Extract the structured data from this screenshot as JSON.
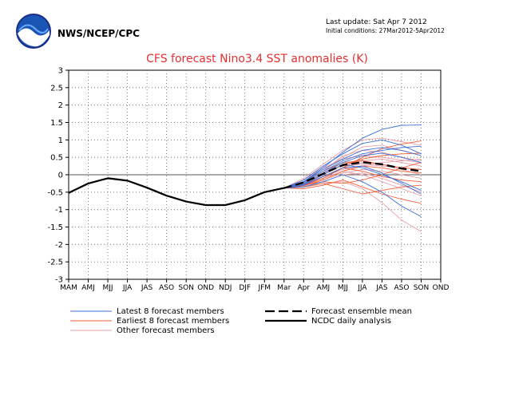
{
  "header": {
    "agency": "NWS/NCEP/CPC",
    "logo_text": "NOAA",
    "last_update": "Last update: Sat Apr 7 2012",
    "initial_conditions": "Initial conditions: 27Mar2012-5Apr2012"
  },
  "colors": {
    "latest": "#3b6fd8",
    "earliest": "#f0603a",
    "other": "#e8a0a8",
    "analysis": "#000000",
    "mean": "#000000",
    "title": "#e53030",
    "grid": "#555555"
  },
  "chart_data": {
    "type": "line",
    "title": "CFS forecast Nino3.4 SST anomalies (K)",
    "categories": [
      "MAM",
      "AMJ",
      "MJJ",
      "JJA",
      "JAS",
      "ASO",
      "SON",
      "OND",
      "NDJ",
      "DJF",
      "JFM",
      "Mar",
      "Apr",
      "AMJ",
      "MJJ",
      "JJA",
      "JAS",
      "ASO",
      "SON",
      "OND"
    ],
    "ylim": [
      -3,
      3
    ],
    "yticks": [
      3,
      2.5,
      2,
      1.5,
      1,
      0.5,
      0,
      -0.5,
      -1,
      -1.5,
      -2,
      -2.5,
      -3
    ],
    "grid": true,
    "analysis": {
      "name": "NCDC daily analysis",
      "values": [
        -0.52,
        -0.25,
        -0.1,
        -0.17,
        -0.37,
        -0.6,
        -0.77,
        -0.87,
        -0.87,
        -0.73,
        -0.5,
        -0.38
      ]
    },
    "ensemble_mean": {
      "name": "Forecast ensemble mean",
      "x_start": 11,
      "values": [
        -0.38,
        -0.22,
        0.03,
        0.28,
        0.36,
        0.3,
        0.18,
        0.1
      ]
    },
    "member_groups": [
      {
        "name": "Latest 8 forecast members",
        "color_key": "latest",
        "members": [
          [
            -0.38,
            -0.2,
            0.2,
            0.65,
            1.05,
            1.3,
            1.42,
            1.43
          ],
          [
            -0.38,
            -0.15,
            0.25,
            0.6,
            0.9,
            1.0,
            0.85,
            0.6
          ],
          [
            -0.38,
            -0.25,
            0.05,
            0.35,
            0.55,
            0.62,
            0.5,
            0.35
          ],
          [
            -0.38,
            -0.3,
            -0.05,
            0.2,
            0.25,
            0.05,
            -0.25,
            -0.55
          ],
          [
            -0.38,
            -0.35,
            -0.2,
            0.0,
            -0.2,
            -0.5,
            -0.9,
            -1.2
          ],
          [
            -0.38,
            -0.2,
            0.15,
            0.45,
            0.7,
            0.78,
            0.7,
            0.55
          ],
          [
            -0.38,
            -0.28,
            0.0,
            0.3,
            0.2,
            0.0,
            -0.2,
            -0.45
          ],
          [
            -0.38,
            -0.22,
            0.1,
            0.4,
            0.6,
            0.7,
            0.78,
            0.82
          ]
        ]
      },
      {
        "name": "Earliest 8 forecast members",
        "color_key": "earliest",
        "members": [
          [
            -0.38,
            -0.4,
            -0.3,
            -0.15,
            -0.35,
            -0.55,
            -0.7,
            -0.82
          ],
          [
            -0.38,
            -0.3,
            -0.1,
            0.2,
            0.5,
            0.75,
            0.88,
            0.97
          ],
          [
            -0.38,
            -0.35,
            -0.25,
            -0.4,
            -0.55,
            -0.45,
            -0.35,
            -0.3
          ],
          [
            -0.38,
            -0.25,
            0.0,
            0.3,
            0.45,
            0.55,
            0.6,
            0.62
          ],
          [
            -0.38,
            -0.32,
            -0.15,
            0.1,
            0.25,
            0.2,
            0.1,
            0.05
          ],
          [
            -0.38,
            -0.28,
            -0.05,
            0.2,
            0.1,
            -0.05,
            -0.15,
            -0.2
          ],
          [
            -0.38,
            -0.3,
            -0.2,
            -0.25,
            -0.15,
            0.0,
            0.2,
            0.35
          ],
          [
            -0.38,
            -0.2,
            0.1,
            0.35,
            0.4,
            0.3,
            0.2,
            0.15
          ]
        ]
      },
      {
        "name": "Other forecast members",
        "color_key": "other",
        "members": [
          [
            -0.38,
            -0.1,
            0.3,
            0.7,
            1.0,
            1.05,
            0.95,
            0.85
          ],
          [
            -0.38,
            -0.2,
            0.15,
            0.5,
            0.8,
            0.85,
            0.7,
            0.55
          ],
          [
            -0.38,
            -0.3,
            -0.1,
            0.1,
            0.0,
            -0.2,
            -0.4,
            -0.6
          ],
          [
            -0.38,
            -0.35,
            -0.25,
            -0.2,
            -0.4,
            -0.8,
            -1.3,
            -1.63
          ],
          [
            -0.38,
            -0.25,
            0.05,
            0.25,
            0.3,
            0.25,
            0.2,
            0.15
          ],
          [
            -0.38,
            -0.3,
            -0.05,
            0.15,
            0.25,
            0.35,
            0.4,
            0.45
          ],
          [
            -0.38,
            -0.15,
            0.2,
            0.45,
            0.55,
            0.5,
            0.42,
            0.35
          ],
          [
            -0.38,
            -0.3,
            -0.15,
            0.05,
            0.15,
            0.1,
            0.0,
            -0.1
          ],
          [
            -0.38,
            -0.25,
            0.0,
            0.3,
            0.4,
            0.45,
            0.35,
            0.25
          ],
          [
            -0.38,
            -0.35,
            -0.2,
            0.0,
            0.05,
            -0.1,
            -0.3,
            -0.5
          ],
          [
            -0.38,
            -0.2,
            0.1,
            0.55,
            0.7,
            0.65,
            0.5,
            0.4
          ],
          [
            -0.38,
            -0.28,
            -0.1,
            0.2,
            0.35,
            0.3,
            0.15,
            0.0
          ]
        ]
      }
    ],
    "legend": {
      "placement": "bottom",
      "entries": [
        {
          "label": "Latest 8 forecast members",
          "style": "latest"
        },
        {
          "label": "Earliest 8 forecast members",
          "style": "earliest"
        },
        {
          "label": "Other forecast members",
          "style": "other"
        },
        {
          "label": "Forecast ensemble mean",
          "style": "mean"
        },
        {
          "label": "NCDC daily analysis",
          "style": "analysis"
        }
      ]
    }
  }
}
